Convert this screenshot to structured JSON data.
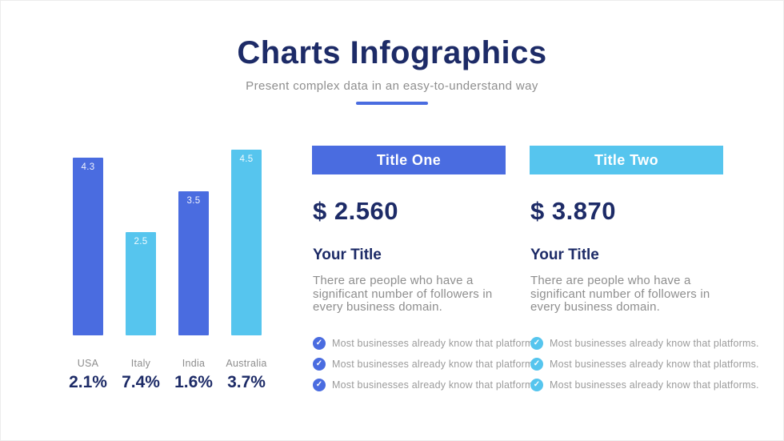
{
  "header": {
    "title": "Charts Infographics",
    "subtitle": "Present complex data in an easy-to-understand way"
  },
  "accent_colors": {
    "navy": "#1d2b67",
    "royal_blue": "#4a6ce0",
    "light_blue": "#56c5ee",
    "underline": "#4a6ce0"
  },
  "chart_data": {
    "type": "bar",
    "categories": [
      "USA",
      "Italy",
      "India",
      "Australia"
    ],
    "values": [
      4.3,
      2.5,
      3.5,
      4.5
    ],
    "percent_labels": [
      "2.1%",
      "7.4%",
      "1.6%",
      "3.7%"
    ],
    "bar_colors": [
      "#4a6ce0",
      "#56c5ee",
      "#4a6ce0",
      "#56c5ee"
    ],
    "title": "",
    "xlabel": "",
    "ylabel": "",
    "ylim": [
      0,
      4.5
    ],
    "grid": false,
    "axes_shown": false,
    "value_labels_position": "inside-top"
  },
  "columns": [
    {
      "header_label": "Title One",
      "header_color": "#4a6ce0",
      "amount": "$ 2.560",
      "subtitle": "Your Title",
      "description": "There are people who have a significant number of followers in every business domain.",
      "bullet_icon_color": "#4a6ce0",
      "bullets": [
        "Most businesses already know that platforms.",
        "Most businesses already know that platforms.",
        "Most businesses already know that platforms."
      ]
    },
    {
      "header_label": "Title Two",
      "header_color": "#56c5ee",
      "amount": "$ 3.870",
      "subtitle": "Your Title",
      "description": "There are people who have a significant number of followers in every business domain.",
      "bullet_icon_color": "#56c5ee",
      "bullets": [
        "Most businesses already know that platforms.",
        "Most businesses already know that platforms.",
        "Most businesses already know that platforms."
      ]
    }
  ]
}
